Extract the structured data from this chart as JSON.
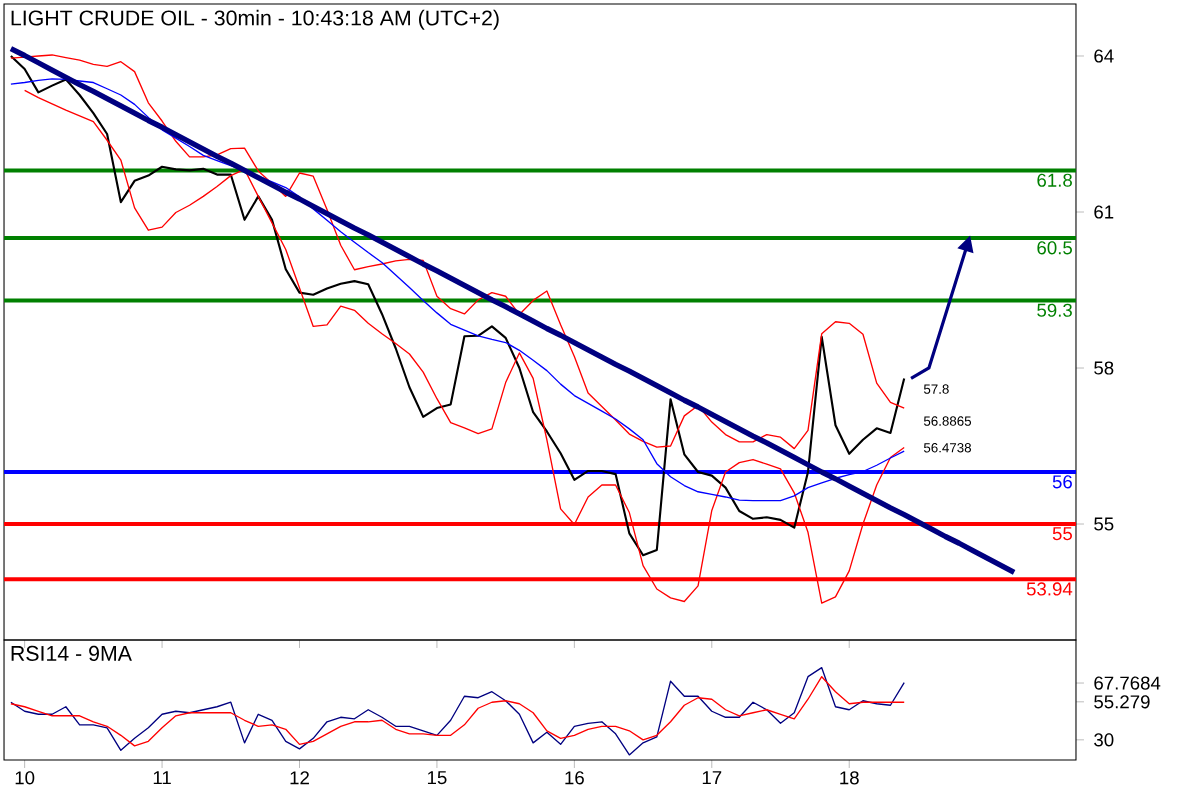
{
  "chart_data": [
    {
      "type": "line",
      "title": "LIGHT CRUDE OIL - 30min - 10:43:18 AM (UTC+2)",
      "categories": [
        null,
        "10",
        null,
        null,
        null,
        null,
        null,
        null,
        null,
        null,
        null,
        "11",
        null,
        null,
        null,
        null,
        null,
        null,
        null,
        null,
        null,
        "12",
        null,
        null,
        null,
        null,
        null,
        null,
        null,
        null,
        null,
        "15",
        null,
        null,
        null,
        null,
        null,
        null,
        null,
        null,
        null,
        "16",
        null,
        null,
        null,
        null,
        null,
        null,
        null,
        null,
        null,
        "17",
        null,
        null,
        null,
        null,
        null,
        null,
        null,
        null,
        null,
        "18",
        null,
        null,
        null,
        null,
        null,
        null,
        null,
        null,
        null,
        null,
        null,
        null,
        null,
        null,
        null,
        null
      ],
      "ylim": [
        52.77,
        65
      ],
      "yticks": [
        55,
        58,
        61,
        64
      ],
      "tick_labels": "y",
      "marker": "none",
      "ref_lines": [
        {
          "axis": "y",
          "value": 61.8,
          "label": "61.8",
          "color": "#008000"
        },
        {
          "axis": "y",
          "value": 60.5,
          "label": "60.5",
          "color": "#008000"
        },
        {
          "axis": "y",
          "value": 59.3,
          "label": "59.3",
          "color": "#008000"
        },
        {
          "axis": "y",
          "value": 56,
          "label": "56",
          "color": "#0000ff"
        },
        {
          "axis": "y",
          "value": 55,
          "label": "55",
          "color": "#ff0000"
        },
        {
          "axis": "y",
          "value": 53.94,
          "label": "53.94",
          "color": "#ff0000"
        }
      ],
      "annotations": [
        "57.8",
        "56.8865",
        "56.4738"
      ],
      "series": [
        {
          "color": "#000000",
          "values": [
            64.0,
            63.75,
            63.3,
            63.43,
            63.55,
            63.25,
            62.9,
            62.5,
            61.19,
            61.6,
            61.7,
            61.87,
            61.82,
            61.8,
            61.83,
            61.72,
            61.72,
            60.85,
            61.3,
            60.85,
            59.9,
            59.45,
            59.41,
            59.53,
            59.62,
            59.67,
            59.61,
            59.04,
            58.38,
            57.63,
            57.06,
            57.23,
            57.3,
            58.61,
            58.62,
            58.8,
            58.58,
            58.0,
            57.15,
            56.78,
            56.36,
            55.85,
            56.02,
            56.02,
            55.96,
            54.82,
            54.4,
            54.5,
            57.4,
            56.34,
            56.0,
            55.93,
            55.7,
            55.25,
            55.1,
            55.13,
            55.08,
            54.93,
            56.0,
            58.6,
            56.9,
            56.35,
            56.62,
            56.84,
            56.75,
            57.8,
            null,
            null,
            null,
            null,
            null,
            null,
            null,
            null,
            null,
            null,
            null,
            null
          ]
        },
        {
          "color": "#ff0000",
          "values": [
            63.96,
            63.98,
            64.0,
            64.02,
            63.97,
            63.92,
            63.84,
            63.8,
            63.89,
            63.7,
            63.1,
            62.75,
            62.36,
            62.06,
            62.06,
            62.1,
            62.22,
            62.23,
            61.79,
            61.55,
            61.3,
            61.75,
            61.69,
            61.05,
            60.36,
            59.89,
            59.95,
            60.0,
            60.06,
            60.09,
            60.07,
            59.38,
            59.14,
            59.04,
            59.31,
            59.45,
            59.38,
            59.03,
            59.3,
            59.48,
            58.83,
            58.22,
            57.52,
            57.26,
            57.0,
            56.73,
            56.59,
            56.48,
            56.5,
            57.08,
            57.28,
            56.96,
            56.72,
            56.58,
            56.58,
            56.72,
            56.67,
            56.45,
            56.8,
            58.66,
            58.89,
            58.86,
            58.65,
            57.71,
            57.34,
            57.23,
            null,
            null,
            null,
            null,
            null,
            null,
            null,
            null,
            null,
            null,
            null,
            null
          ]
        },
        {
          "color": "#ff0000",
          "values": [
            null,
            63.34,
            63.2,
            63.08,
            62.96,
            62.85,
            62.74,
            62.38,
            62.0,
            61.08,
            60.65,
            60.71,
            60.99,
            61.13,
            61.3,
            61.49,
            61.7,
            61.82,
            61.3,
            60.79,
            60.28,
            59.54,
            58.8,
            58.83,
            59.19,
            59.11,
            58.86,
            58.66,
            58.47,
            58.27,
            57.92,
            57.41,
            56.95,
            56.85,
            56.74,
            56.83,
            57.72,
            58.29,
            57.8,
            56.62,
            55.29,
            54.99,
            55.52,
            55.75,
            55.75,
            55.22,
            54.2,
            53.75,
            53.58,
            53.51,
            53.81,
            55.26,
            56.0,
            56.18,
            56.24,
            56.15,
            56.06,
            55.6,
            54.84,
            53.48,
            53.6,
            54.1,
            55.0,
            55.75,
            56.28,
            56.47,
            null,
            null,
            null,
            null,
            null,
            null,
            null,
            null,
            null,
            null,
            null,
            null
          ]
        },
        {
          "color": "#0000ff",
          "values": [
            63.46,
            63.49,
            63.53,
            63.56,
            63.55,
            63.52,
            63.49,
            63.37,
            63.25,
            63.07,
            62.82,
            62.58,
            62.42,
            62.26,
            62.09,
            61.99,
            61.89,
            61.79,
            61.69,
            61.58,
            61.47,
            61.29,
            61.06,
            60.84,
            60.62,
            60.42,
            60.22,
            60.03,
            59.79,
            59.55,
            59.3,
            59.06,
            58.84,
            58.73,
            58.62,
            58.55,
            58.49,
            58.34,
            58.15,
            57.95,
            57.69,
            57.47,
            57.32,
            57.17,
            57.02,
            56.83,
            56.62,
            56.16,
            55.91,
            55.74,
            55.62,
            55.57,
            55.52,
            55.46,
            55.45,
            55.45,
            55.45,
            55.54,
            55.7,
            55.79,
            55.88,
            55.95,
            56.01,
            56.13,
            56.27,
            56.4,
            null,
            null,
            null,
            null,
            null,
            null,
            null,
            null,
            null,
            null,
            null,
            null
          ]
        },
        {
          "color": "#000080",
          "values": [
            64.14,
            64.01,
            63.87,
            63.73,
            63.59,
            63.45,
            63.32,
            63.18,
            63.04,
            62.9,
            62.76,
            62.63,
            62.49,
            62.35,
            62.21,
            62.07,
            61.94,
            61.8,
            61.66,
            61.52,
            61.38,
            61.25,
            61.11,
            60.97,
            60.83,
            60.69,
            60.56,
            60.42,
            60.28,
            60.14,
            60.0,
            59.87,
            59.73,
            59.59,
            59.45,
            59.31,
            59.18,
            59.04,
            58.9,
            58.76,
            58.63,
            58.49,
            58.35,
            58.21,
            58.07,
            57.94,
            57.8,
            57.66,
            57.52,
            57.38,
            57.25,
            57.11,
            56.97,
            56.83,
            56.69,
            56.56,
            56.42,
            56.28,
            56.14,
            56.0,
            55.87,
            55.73,
            55.59,
            55.45,
            55.31,
            55.18,
            55.04,
            54.9,
            54.76,
            54.63,
            54.49,
            54.35,
            54.21,
            54.07,
            null,
            null,
            null,
            null
          ]
        }
      ]
    },
    {
      "type": "line",
      "title": "RSI14 - 9MA",
      "categories": [
        null,
        "10",
        null,
        null,
        null,
        null,
        null,
        null,
        null,
        null,
        null,
        "11",
        null,
        null,
        null,
        null,
        null,
        null,
        null,
        null,
        null,
        "12",
        null,
        null,
        null,
        null,
        null,
        null,
        null,
        null,
        null,
        "15",
        null,
        null,
        null,
        null,
        null,
        null,
        null,
        null,
        null,
        "16",
        null,
        null,
        null,
        null,
        null,
        null,
        null,
        null,
        null,
        "17",
        null,
        null,
        null,
        null,
        null,
        null,
        null,
        null,
        null,
        "18",
        null,
        null,
        null,
        null,
        null,
        null,
        null,
        null,
        null,
        null,
        null,
        null,
        null,
        null,
        null,
        null
      ],
      "ylim": [
        16.6,
        96.4
      ],
      "yticks": [
        30,
        55.279,
        67.7684
      ],
      "marker": "none",
      "series": [
        {
          "color": "#000080",
          "values": [
            55,
            49,
            47,
            47,
            52,
            40,
            40,
            38,
            23,
            31,
            38,
            47,
            49,
            48,
            50,
            52,
            55,
            28,
            47,
            43,
            29,
            24,
            31,
            42,
            45,
            44,
            50,
            45,
            39,
            39,
            36,
            33,
            43,
            59,
            58,
            62,
            56,
            47,
            28,
            35,
            27,
            39,
            41,
            42,
            34,
            20,
            28,
            32,
            69,
            59,
            59,
            49,
            45,
            45,
            55,
            50,
            41,
            48,
            72,
            78,
            52,
            50,
            56,
            54,
            53,
            68,
            null,
            null,
            null,
            null,
            null,
            null,
            null,
            null,
            null,
            null,
            null,
            null
          ]
        },
        {
          "color": "#ff0000",
          "values": [
            54,
            52,
            49,
            46,
            46,
            46,
            42,
            39,
            33,
            26,
            29,
            38,
            46,
            48,
            48,
            48,
            48,
            43,
            39,
            40,
            37,
            27,
            29,
            34,
            39,
            42,
            42,
            43,
            37,
            34,
            34,
            33,
            33,
            40,
            51,
            55,
            56,
            54,
            48,
            36,
            31,
            33,
            37,
            39,
            39,
            36,
            30,
            33,
            42,
            53,
            58,
            57,
            50,
            46,
            48,
            50,
            47,
            44,
            57,
            72,
            62,
            54,
            55,
            55,
            55,
            55,
            null,
            null,
            null,
            null,
            null,
            null,
            null,
            null,
            null,
            null,
            null,
            null
          ]
        }
      ]
    }
  ]
}
